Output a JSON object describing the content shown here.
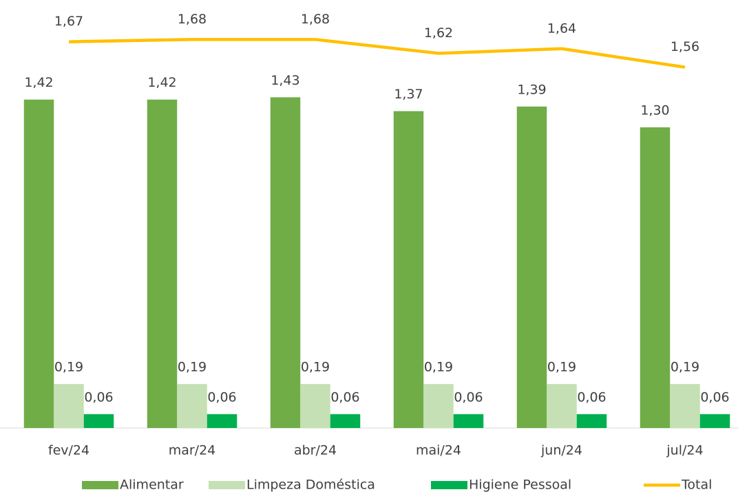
{
  "chart_data": {
    "type": "bar",
    "categories": [
      "fev/24",
      "mar/24",
      "abr/24",
      "mai/24",
      "jun/24",
      "jul/24"
    ],
    "ylim": [
      0,
      1.8
    ],
    "series": [
      {
        "name": "Alimentar",
        "color": "#70ad47",
        "values": [
          1.42,
          1.42,
          1.43,
          1.37,
          1.39,
          1.3
        ],
        "value_labels": [
          "1,42",
          "1,42",
          "1,43",
          "1,37",
          "1,39",
          "1,30"
        ]
      },
      {
        "name": "Limpeza Doméstica",
        "color": "#c5e0b4",
        "values": [
          0.19,
          0.19,
          0.19,
          0.19,
          0.19,
          0.19
        ],
        "value_labels": [
          "0,19",
          "0,19",
          "0,19",
          "0,19",
          "0,19",
          "0,19"
        ]
      },
      {
        "name": "Higiene Pessoal",
        "color": "#00b050",
        "values": [
          0.06,
          0.06,
          0.06,
          0.06,
          0.06,
          0.06
        ],
        "value_labels": [
          "0,06",
          "0,06",
          "0,06",
          "0,06",
          "0,06",
          "0,06"
        ]
      },
      {
        "name": "Total",
        "type": "line",
        "color": "#ffc000",
        "values": [
          1.67,
          1.68,
          1.68,
          1.62,
          1.64,
          1.56
        ],
        "value_labels": [
          "1,67",
          "1,68",
          "1,68",
          "1,62",
          "1,64",
          "1,56"
        ]
      }
    ]
  }
}
